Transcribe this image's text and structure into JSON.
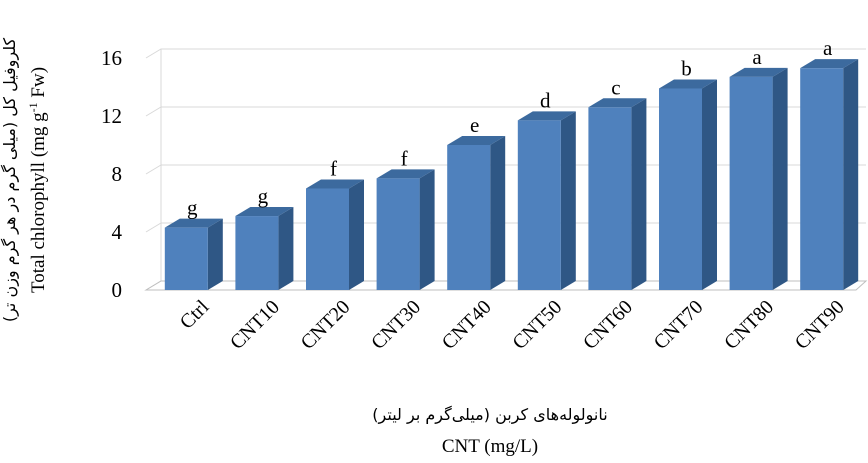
{
  "chart_data": {
    "type": "bar",
    "categories": [
      "Ctrl",
      "CNT10",
      "CNT20",
      "CNT30",
      "CNT40",
      "CNT50",
      "CNT60",
      "CNT70",
      "CNT80",
      "CNT90"
    ],
    "values": [
      4.3,
      5.1,
      7.0,
      7.7,
      10.0,
      11.7,
      12.6,
      13.9,
      14.7,
      15.3
    ],
    "bar_labels": [
      "g",
      "g",
      "f",
      "f",
      "e",
      "d",
      "c",
      "b",
      "a",
      "a"
    ],
    "yticks": [
      "0",
      "4",
      "8",
      "12",
      "16"
    ],
    "ylim": [
      0,
      16
    ],
    "grid": true,
    "style": "3d-column",
    "bar_color": "#4F81BD",
    "xlabel_fa": "نانولوله‌های کربن (میلی‌گرم بر لیتر)",
    "xlabel": "CNT (mg/L)",
    "ylabel_fa": "کلروفیل کل (میلی گرم در هر گرم وزن تر)",
    "ylabel": "Total chlorophyll (mg g-1 Fw)"
  }
}
